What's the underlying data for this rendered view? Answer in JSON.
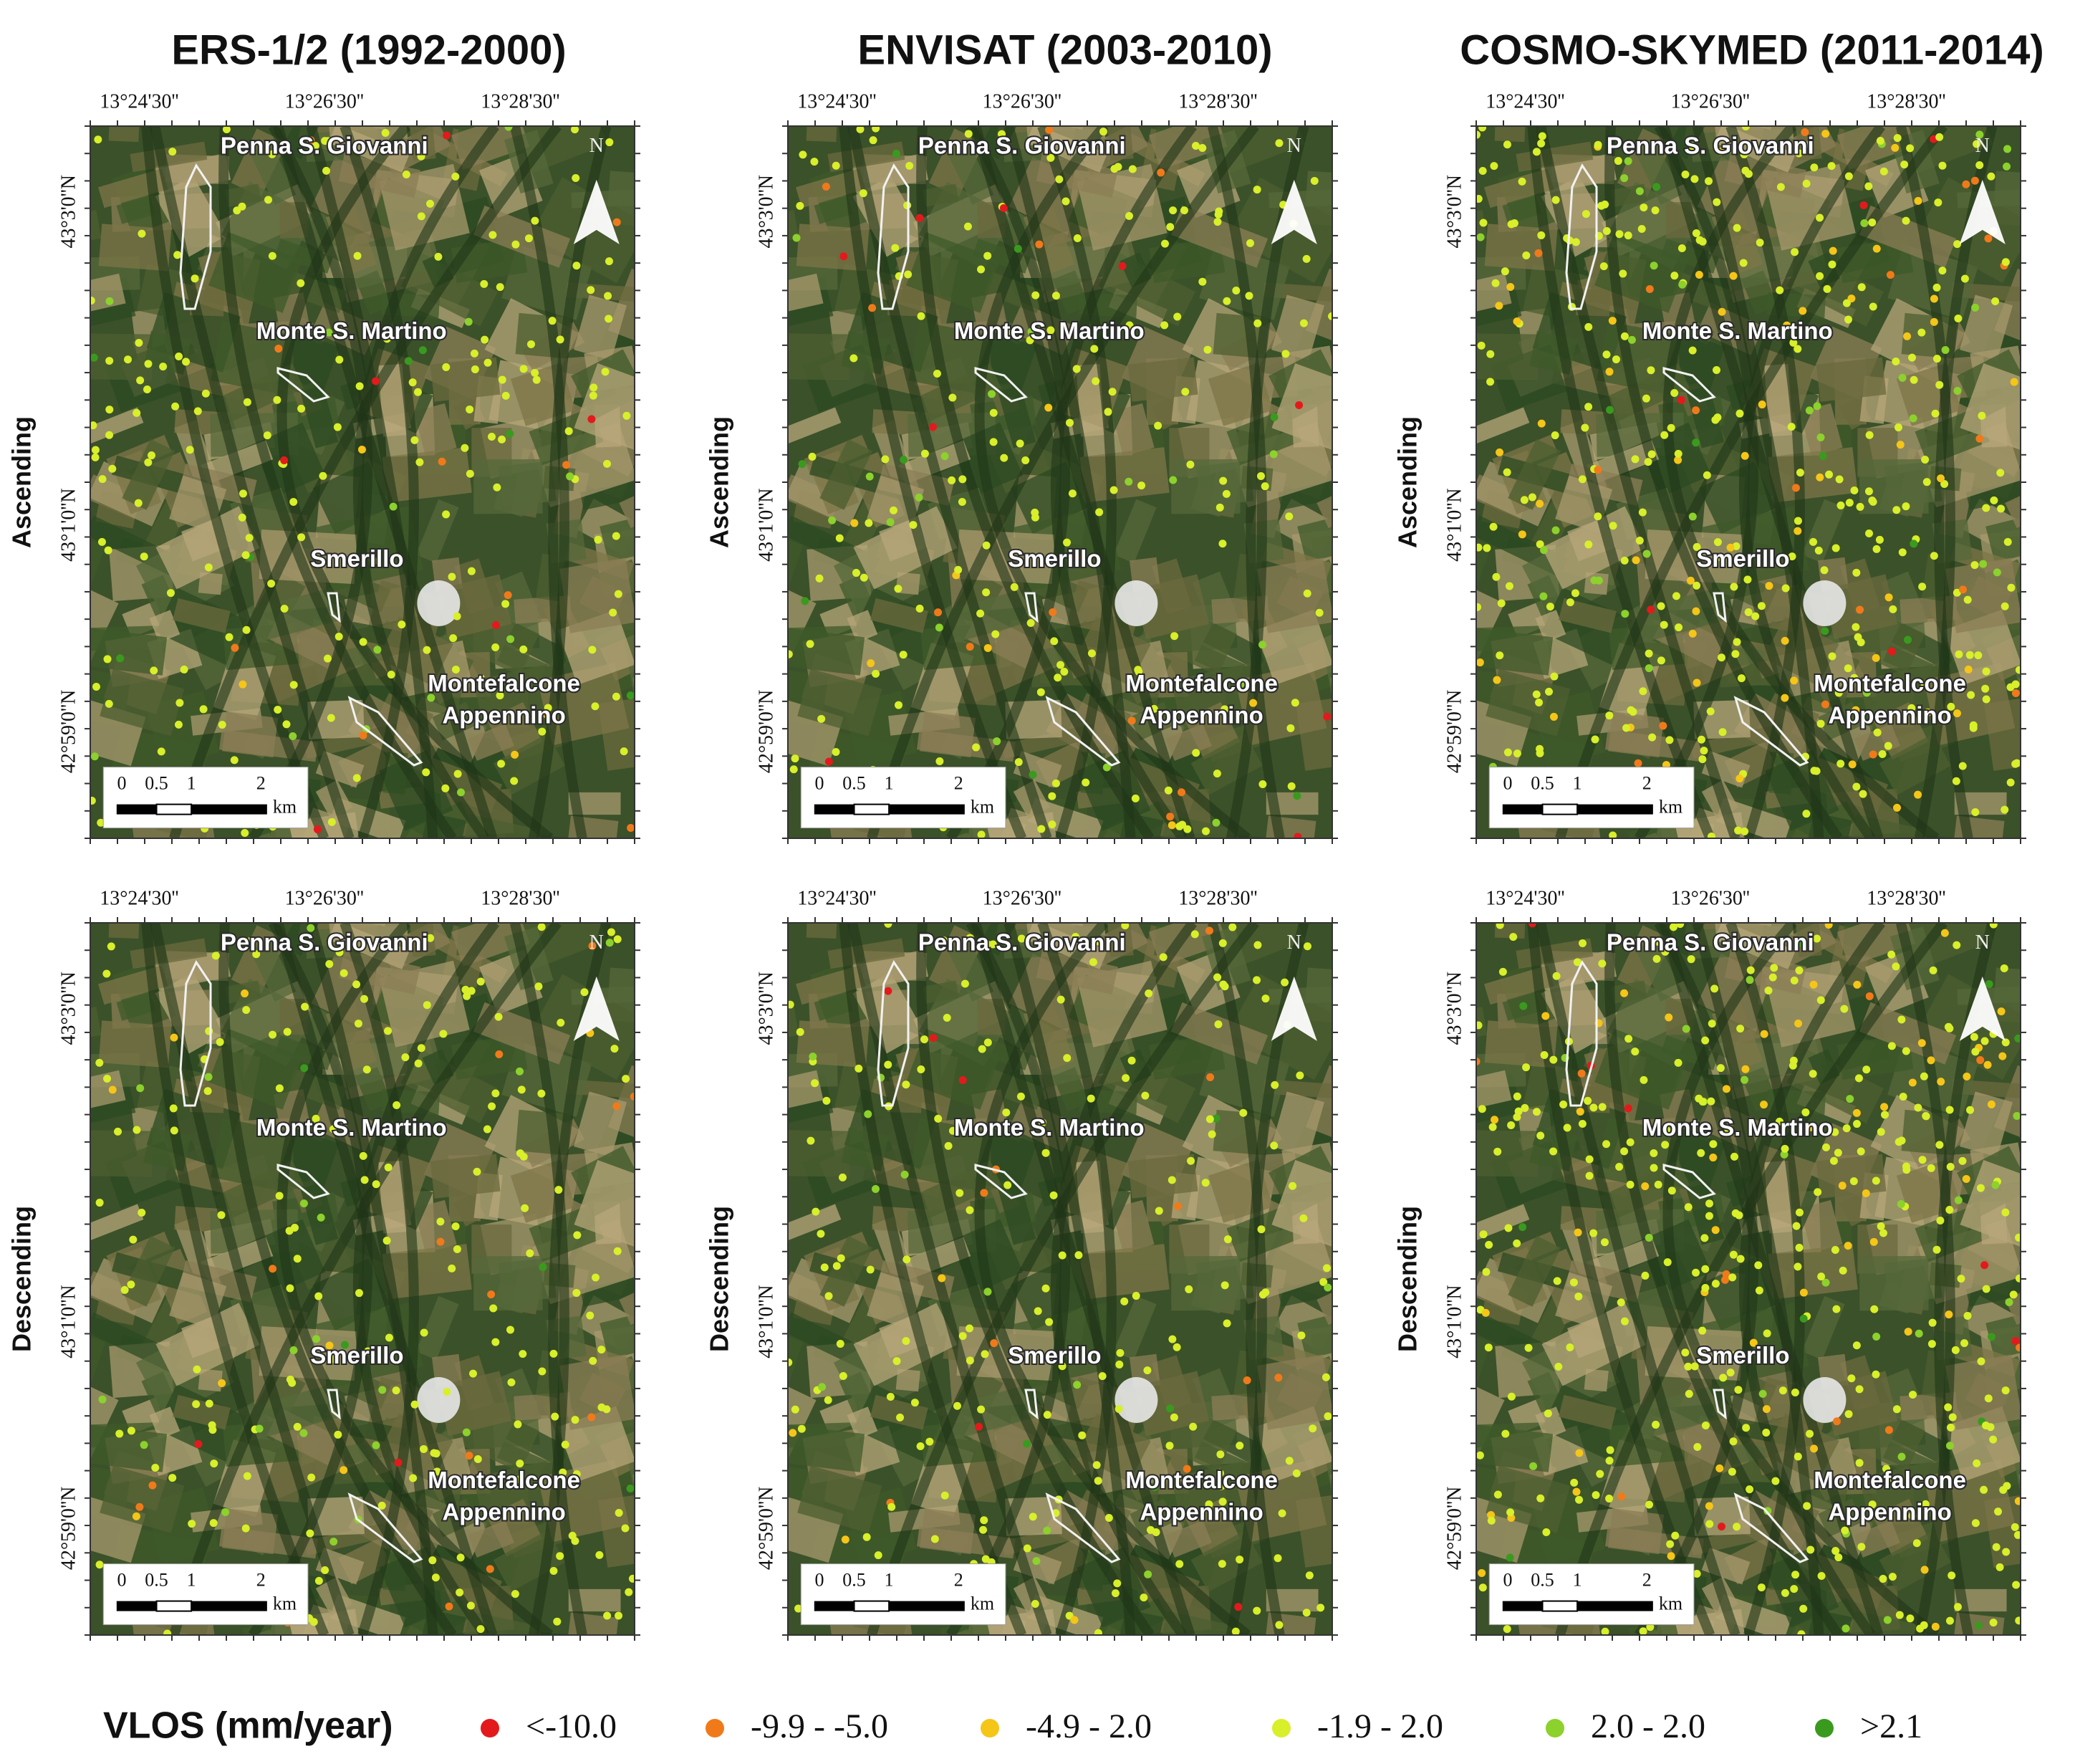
{
  "columns": [
    "ERS-1/2 (1992-2000)",
    "ENVISAT (2003-2010)",
    "COSMO-SKYMED (2011-2014)"
  ],
  "rows": [
    "Ascending",
    "Descending"
  ],
  "longitude_labels": [
    "13°24'30''",
    "13°26'30''",
    "13°28'30''"
  ],
  "latitude_labels": [
    "43°3'0''N",
    "43°1'0''N",
    "42°59'0''N"
  ],
  "place_labels": [
    "Penna S. Giovanni",
    "Monte S. Martino",
    "Smerillo",
    "Montefalcone",
    "Appennino"
  ],
  "north_label": "N",
  "scale_bar": {
    "labels": [
      "0",
      "0.5",
      "1",
      "2"
    ],
    "unit": "km"
  },
  "legend": {
    "title": "VLOS (mm/year)",
    "items": [
      {
        "label": "<-10.0",
        "color": "#e31a1c"
      },
      {
        "label": "-9.9 -  -5.0",
        "color": "#f07a1a"
      },
      {
        "label": "-4.9 - 2.0",
        "color": "#f5c518"
      },
      {
        "label": "-1.9 - 2.0",
        "color": "#d8ef2a"
      },
      {
        "label": "2.0 - 2.0",
        "color": "#8cd12c"
      },
      {
        "label": ">2.1",
        "color": "#3a9a1e"
      }
    ]
  }
}
